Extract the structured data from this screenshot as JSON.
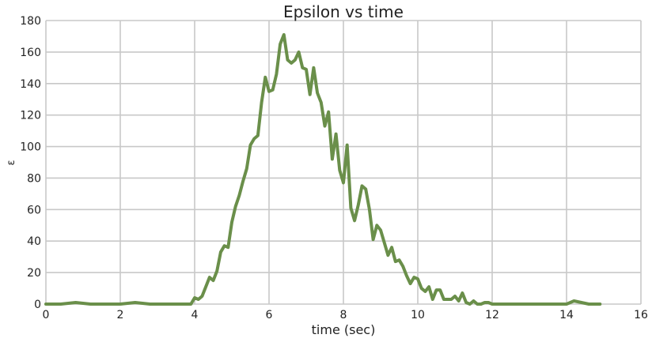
{
  "chart_data": {
    "type": "line",
    "title": "Epsilon vs time",
    "xlabel": "time (sec)",
    "ylabel": "ε",
    "xlim": [
      0,
      16
    ],
    "ylim": [
      0,
      180
    ],
    "xticks": [
      "0",
      "2",
      "4",
      "6",
      "8",
      "10",
      "12",
      "14",
      "16"
    ],
    "yticks": [
      "0",
      "20",
      "40",
      "60",
      "80",
      "100",
      "120",
      "140",
      "160",
      "180"
    ],
    "grid": true,
    "line_color": "#6a8f4a",
    "background": "#ffffff",
    "series": [
      {
        "x": [
          0.0,
          0.4,
          0.8,
          1.2,
          1.6,
          2.0,
          2.4,
          2.8,
          3.2,
          3.6,
          3.9,
          4.0,
          4.1,
          4.2,
          4.3,
          4.4,
          4.5,
          4.6,
          4.7,
          4.8,
          4.9,
          5.0,
          5.1,
          5.2,
          5.3,
          5.4,
          5.5,
          5.6,
          5.7,
          5.8,
          5.9,
          6.0,
          6.1,
          6.2,
          6.3,
          6.4,
          6.5,
          6.6,
          6.7,
          6.8,
          6.9,
          7.0,
          7.1,
          7.2,
          7.3,
          7.4,
          7.5,
          7.6,
          7.7,
          7.8,
          7.9,
          8.0,
          8.1,
          8.2,
          8.3,
          8.4,
          8.5,
          8.6,
          8.7,
          8.8,
          8.9,
          9.0,
          9.1,
          9.2,
          9.3,
          9.4,
          9.5,
          9.6,
          9.7,
          9.8,
          9.9,
          10.0,
          10.1,
          10.2,
          10.3,
          10.4,
          10.5,
          10.6,
          10.7,
          10.8,
          10.9,
          11.0,
          11.1,
          11.2,
          11.3,
          11.4,
          11.5,
          11.6,
          11.7,
          11.8,
          11.9,
          12.0,
          12.4,
          12.8,
          13.2,
          13.6,
          14.0,
          14.2,
          14.4,
          14.6,
          14.9
        ],
        "y": [
          0,
          0,
          1,
          0,
          0,
          0,
          1,
          0,
          0,
          0,
          0,
          4,
          3,
          5,
          11,
          17,
          15,
          21,
          33,
          37,
          36,
          52,
          62,
          69,
          78,
          86,
          101,
          105,
          107,
          128,
          144,
          135,
          136,
          146,
          165,
          171,
          155,
          153,
          155,
          160,
          150,
          149,
          133,
          150,
          134,
          128,
          113,
          122,
          92,
          108,
          85,
          77,
          101,
          61,
          53,
          63,
          75,
          73,
          60,
          41,
          50,
          47,
          39,
          31,
          36,
          27,
          28,
          24,
          18,
          13,
          17,
          16,
          10,
          8,
          11,
          3,
          9,
          9,
          3,
          3,
          3,
          5,
          2,
          7,
          1,
          0,
          2,
          0,
          0,
          1,
          1,
          0,
          0,
          0,
          0,
          0,
          0,
          2,
          1,
          0,
          0
        ]
      }
    ]
  }
}
